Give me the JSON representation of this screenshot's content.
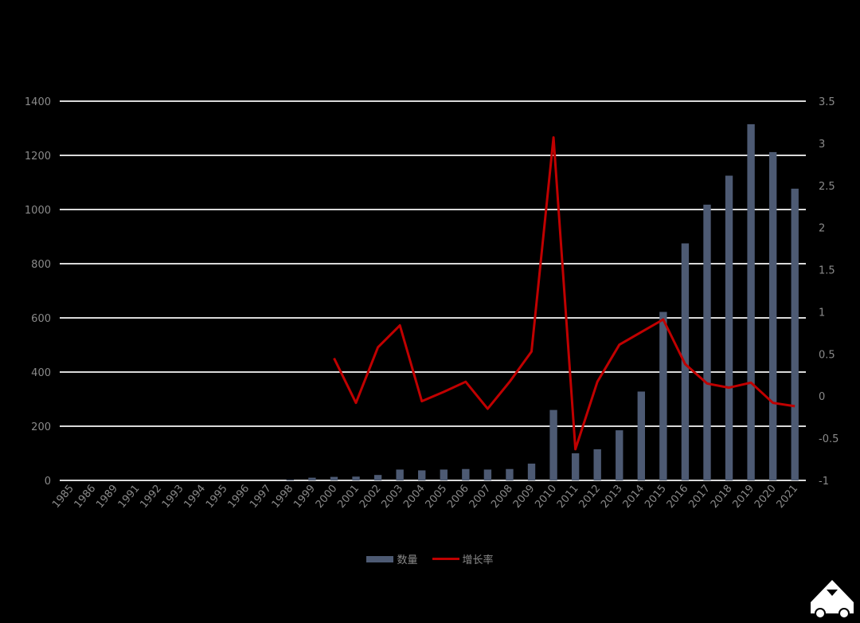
{
  "chart_data": {
    "type": "bar+line",
    "categories": [
      "1985",
      "1986",
      "1989",
      "1991",
      "1992",
      "1993",
      "1994",
      "1995",
      "1996",
      "1997",
      "1998",
      "1999",
      "2000",
      "2001",
      "2002",
      "2003",
      "2004",
      "2005",
      "2006",
      "2007",
      "2008",
      "2009",
      "2010",
      "2011",
      "2012",
      "2013",
      "2014",
      "2015",
      "2016",
      "2017",
      "2018",
      "2019",
      "2020",
      "2021"
    ],
    "series": [
      {
        "name": "数量",
        "type": "bar",
        "axis": "left",
        "color": "#4d5a73",
        "values": [
          0,
          0,
          0,
          0,
          0,
          0,
          0,
          0,
          0,
          0,
          3,
          10,
          13,
          14,
          20,
          40,
          37,
          40,
          42,
          40,
          42,
          62,
          260,
          100,
          115,
          185,
          328,
          622,
          875,
          1018,
          1125,
          1315,
          1212,
          1077
        ]
      },
      {
        "name": "增长率",
        "type": "line",
        "axis": "right",
        "color": "#c00000",
        "values": [
          null,
          null,
          null,
          null,
          null,
          null,
          null,
          null,
          null,
          null,
          null,
          null,
          0.45,
          -0.08,
          0.58,
          0.84,
          -0.06,
          0.05,
          0.17,
          -0.15,
          0.17,
          0.53,
          3.07,
          -0.63,
          0.17,
          0.61,
          0.76,
          0.91,
          0.38,
          0.15,
          0.1,
          0.16,
          -0.08,
          -0.12
        ]
      }
    ],
    "y_left": {
      "min": 0,
      "max": 1400,
      "ticks": [
        0,
        200,
        400,
        600,
        800,
        1000,
        1200,
        1400
      ]
    },
    "y_right": {
      "min": -1,
      "max": 3.5,
      "ticks": [
        "-1",
        "-0.5",
        "0",
        "0.5",
        "1",
        "1.5",
        "2",
        "2.5",
        "3",
        "3.5"
      ]
    },
    "grid": true,
    "legend_position": "bottom"
  },
  "legend": {
    "bar_label": "数量",
    "line_label": "增长率"
  }
}
